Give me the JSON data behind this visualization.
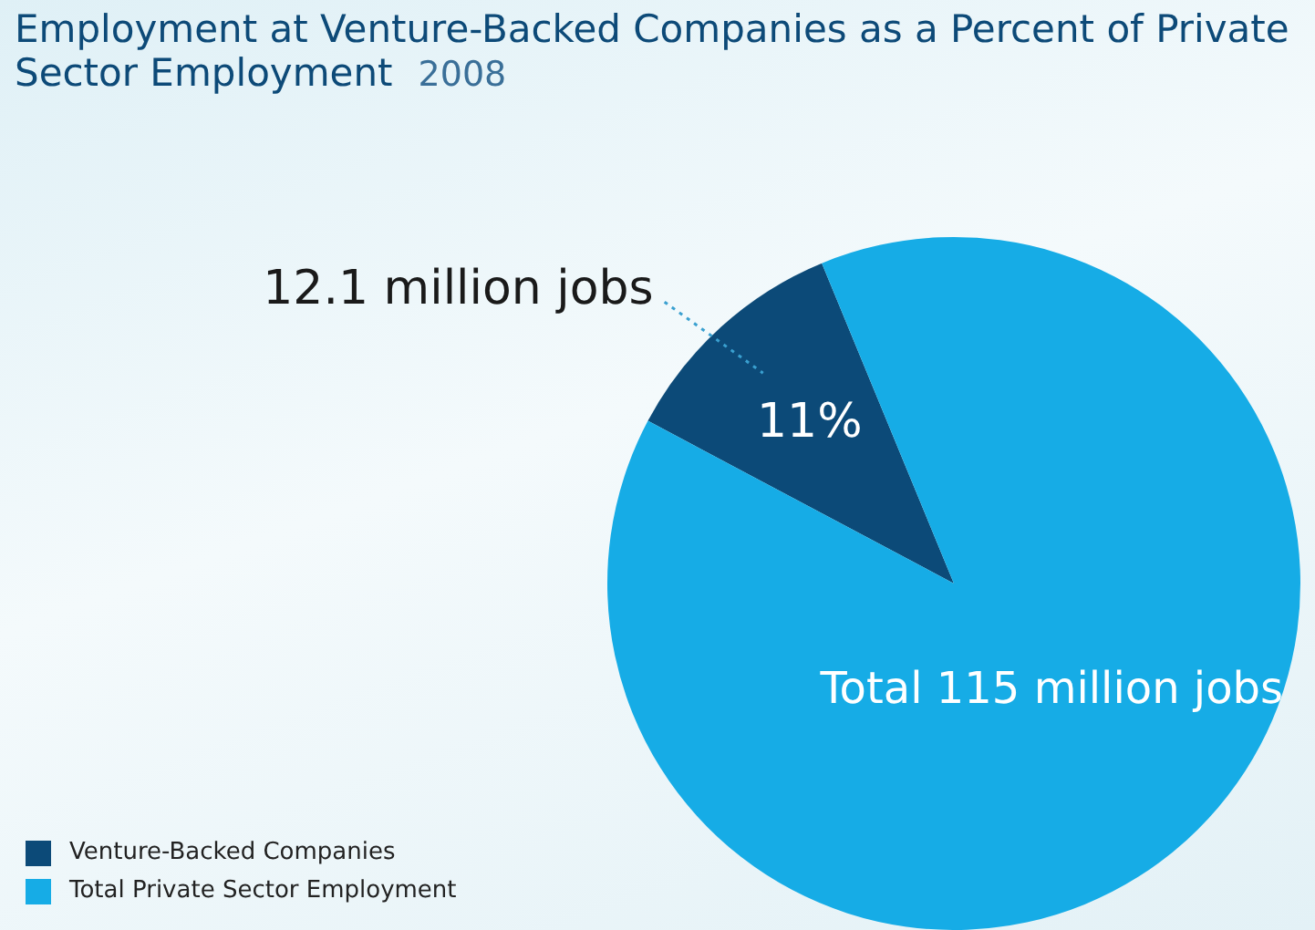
{
  "chart_data": {
    "type": "pie",
    "title": "Employment at Venture-Backed Companies as a Percent of Private Sector Employment",
    "subtitle": "2008",
    "categories": [
      "Venture-Backed Companies",
      "Total Private Sector Employment"
    ],
    "values": [
      11,
      89
    ],
    "colors": [
      "#0c4a78",
      "#16ace6"
    ],
    "value_labels": [
      "11%",
      "Total 115 million jobs"
    ],
    "annotations": [
      "12.1 million jobs"
    ],
    "legend": "bottom left"
  }
}
